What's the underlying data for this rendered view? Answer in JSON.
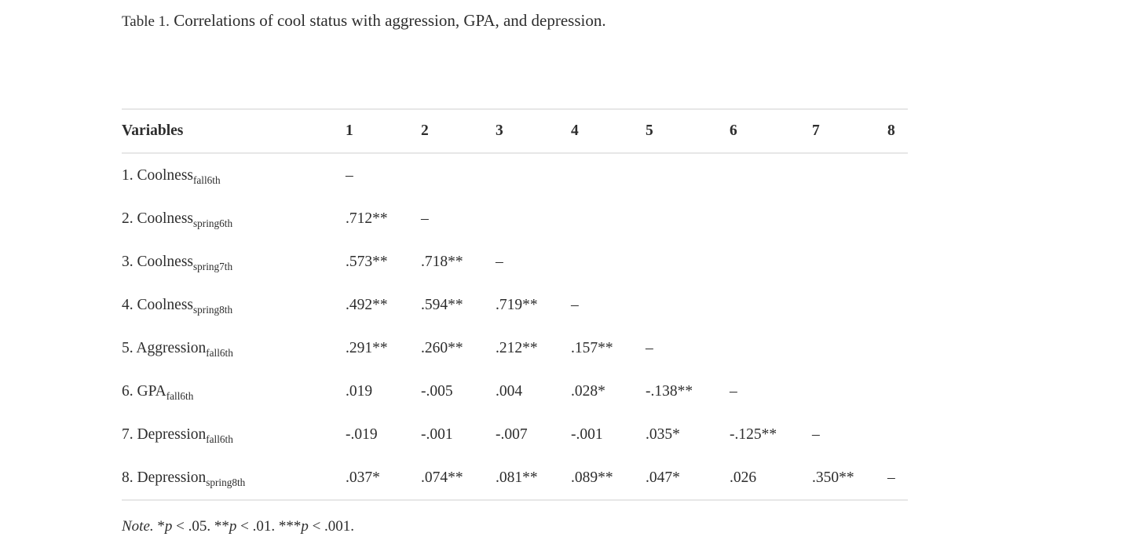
{
  "title": {
    "prefix": "Table 1.",
    "text": "Correlations of cool status with aggression, GPA, and depression."
  },
  "table": {
    "header": [
      "Variables",
      "1",
      "2",
      "3",
      "4",
      "5",
      "6",
      "7",
      "8"
    ],
    "rows": [
      {
        "name": "1. Coolness",
        "sub": "fall6th",
        "cells": [
          "–",
          "",
          "",
          "",
          "",
          "",
          "",
          ""
        ]
      },
      {
        "name": "2. Coolness",
        "sub": "spring6th",
        "cells": [
          ".712**",
          "–",
          "",
          "",
          "",
          "",
          "",
          ""
        ]
      },
      {
        "name": "3. Coolness",
        "sub": "spring7th",
        "cells": [
          ".573**",
          ".718**",
          "–",
          "",
          "",
          "",
          "",
          ""
        ]
      },
      {
        "name": "4. Coolness",
        "sub": "spring8th",
        "cells": [
          ".492**",
          ".594**",
          ".719**",
          "–",
          "",
          "",
          "",
          ""
        ]
      },
      {
        "name": "5. Aggression",
        "sub": "fall6th",
        "cells": [
          ".291**",
          ".260**",
          ".212**",
          ".157**",
          "–",
          "",
          "",
          ""
        ]
      },
      {
        "name": "6. GPA",
        "sub": "fall6th",
        "cells": [
          ".019",
          "-.005",
          ".004",
          ".028*",
          "-.138**",
          "–",
          "",
          ""
        ]
      },
      {
        "name": "7. Depression",
        "sub": "fall6th",
        "cells": [
          "-.019",
          "-.001",
          "-.007",
          "-.001",
          ".035*",
          "-.125**",
          "–",
          ""
        ]
      },
      {
        "name": "8. Depression",
        "sub": "spring8th",
        "cells": [
          ".037*",
          ".074**",
          ".081**",
          ".089**",
          ".047*",
          ".026",
          ".350**",
          "–"
        ]
      }
    ]
  },
  "note": {
    "label": "Note.",
    "sig1_stars": "*",
    "sig1_p": "p",
    "sig1_rest": " < .05.",
    "sig2_stars": "**",
    "sig2_p": "p",
    "sig2_rest": " < .01.",
    "sig3_stars": "***",
    "sig3_p": "p",
    "sig3_rest": " < .001."
  },
  "colors": {
    "text": "#2d2d2d",
    "border": "#e7e7e7",
    "background": "#ffffff"
  }
}
